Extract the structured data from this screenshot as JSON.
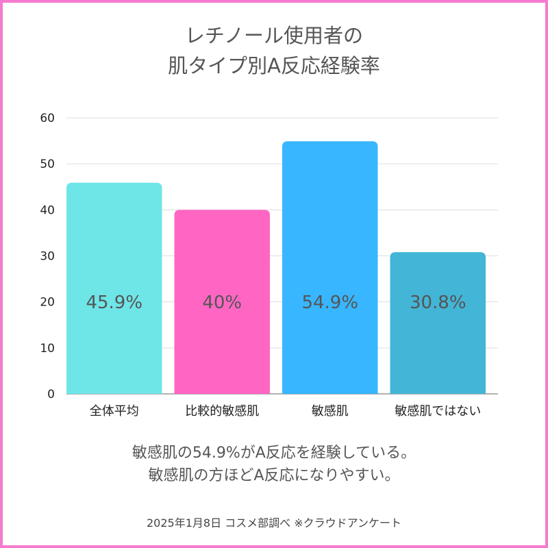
{
  "title": {
    "line1": "レチノール使用者の",
    "line2": "肌タイプ別A反応経験率"
  },
  "caption": {
    "line1": "敏感肌の54.9%がA反応を経験している。",
    "line2": "敏感肌の方ほどA反応になりやすい。"
  },
  "footnote": "2025年1月8日 コスメ部調べ ※クラウドアンケート",
  "colors": {
    "frame": "#f57bcf",
    "gridline": "#dddddd",
    "axis": "#999999",
    "text": "#555555"
  },
  "chart_data": {
    "type": "bar",
    "title": "レチノール使用者の肌タイプ別A反応経験率",
    "xlabel": "",
    "ylabel": "",
    "ylim": [
      0,
      60
    ],
    "yticks": [
      0,
      10,
      20,
      30,
      40,
      50,
      60
    ],
    "grid": true,
    "legend": "none",
    "categories": [
      "全体平均",
      "比較的敏感肌",
      "敏感肌",
      "敏感肌ではない"
    ],
    "values": [
      45.9,
      40,
      54.9,
      30.8
    ],
    "data_labels": [
      "45.9%",
      "40%",
      "54.9%",
      "30.8%"
    ],
    "bar_colors": [
      "#6ee6e8",
      "#ff66c4",
      "#38b6ff",
      "#43b5d6"
    ]
  }
}
